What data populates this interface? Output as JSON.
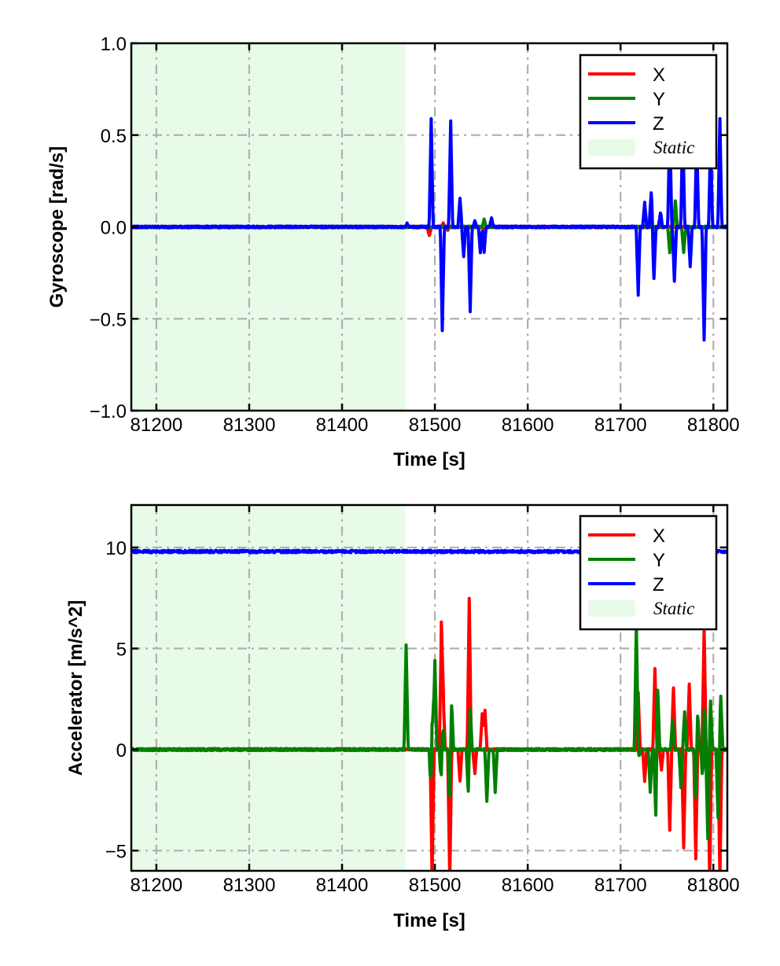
{
  "chart_data": [
    {
      "type": "line",
      "xlabel": "Time [s]",
      "ylabel": "Gyroscope [rad/s]",
      "xlim": [
        81173,
        81815
      ],
      "ylim": [
        -1.0,
        1.0
      ],
      "xticks": [
        81200,
        81300,
        81400,
        81500,
        81600,
        81700,
        81800
      ],
      "xtick_labels": [
        "81200",
        "81300",
        "81400",
        "81500",
        "81600",
        "81700",
        "81800"
      ],
      "yticks": [
        1.0,
        0.5,
        0.0,
        -0.5,
        -1.0
      ],
      "ytick_labels": [
        "1.0",
        "0.5",
        "0.0",
        "−0.5",
        "−1.0"
      ],
      "grid": true,
      "legend_position": "top-right",
      "static_region": {
        "label": "Static",
        "x_range": [
          81173,
          81468
        ],
        "color": "#e8fbe8"
      },
      "series": [
        {
          "name": "X",
          "color": "#ff0000",
          "baseline": 0.0,
          "noise": 0.004,
          "spikes": [
            [
              81494,
              -0.05
            ],
            [
              81509,
              0.02
            ],
            [
              81514,
              -0.02
            ],
            [
              81553,
              -0.02
            ]
          ]
        },
        {
          "name": "Y",
          "color": "#008000",
          "baseline": 0.0,
          "noise": 0.004,
          "spikes": [
            [
              81553,
              0.04
            ],
            [
              81753,
              -0.14
            ],
            [
              81759,
              0.14
            ],
            [
              81768,
              -0.14
            ]
          ]
        },
        {
          "name": "Z",
          "color": "#0000ff",
          "baseline": 0.0,
          "noise": 0.005,
          "spikes": [
            [
              81470,
              0.02
            ],
            [
              81496,
              0.59
            ],
            [
              81508,
              -0.56
            ],
            [
              81517,
              0.58
            ],
            [
              81527,
              0.16
            ],
            [
              81531,
              -0.16
            ],
            [
              81538,
              -0.46
            ],
            [
              81543,
              0.03
            ],
            [
              81549,
              -0.14
            ],
            [
              81553,
              -0.14
            ],
            [
              81561,
              0.05
            ],
            [
              81719,
              -0.37
            ],
            [
              81726,
              0.13
            ],
            [
              81733,
              0.19
            ],
            [
              81736,
              -0.28
            ],
            [
              81743,
              0.08
            ],
            [
              81753,
              0.55
            ],
            [
              81758,
              -0.3
            ],
            [
              81767,
              0.55
            ],
            [
              81775,
              -0.22
            ],
            [
              81782,
              0.5
            ],
            [
              81790,
              -0.62
            ],
            [
              81797,
              0.5
            ],
            [
              81807,
              0.59
            ]
          ]
        }
      ]
    },
    {
      "type": "line",
      "xlabel": "Time [s]",
      "ylabel": "Accelerator [m/s^2]",
      "xlim": [
        81173,
        81815
      ],
      "ylim": [
        -6.0,
        12.1
      ],
      "xticks": [
        81200,
        81300,
        81400,
        81500,
        81600,
        81700,
        81800
      ],
      "xtick_labels": [
        "81200",
        "81300",
        "81400",
        "81500",
        "81600",
        "81700",
        "81800"
      ],
      "yticks": [
        10,
        5,
        0,
        -5
      ],
      "ytick_labels": [
        "10",
        "5",
        "0",
        "−5"
      ],
      "grid": true,
      "legend_position": "top-right",
      "static_region": {
        "label": "Static",
        "x_range": [
          81173,
          81468
        ],
        "color": "#e8fbe8"
      },
      "series": [
        {
          "name": "X",
          "color": "#ff0000",
          "baseline": 0.0,
          "noise": 0.05,
          "spikes": [
            [
              81497,
              -6.5
            ],
            [
              81507,
              6.1
            ],
            [
              81509,
              2.6
            ],
            [
              81516,
              -6.5
            ],
            [
              81527,
              -1.6
            ],
            [
              81537,
              7.5
            ],
            [
              81543,
              -1.2
            ],
            [
              81551,
              1.8
            ],
            [
              81554,
              1.9
            ],
            [
              81719,
              2.8
            ],
            [
              81726,
              -1.6
            ],
            [
              81737,
              4.0
            ],
            [
              81744,
              -1.0
            ],
            [
              81753,
              -4.0
            ],
            [
              81757,
              3.1
            ],
            [
              81768,
              -4.9
            ],
            [
              81774,
              3.2
            ],
            [
              81781,
              -5.4
            ],
            [
              81790,
              6.0
            ],
            [
              81796,
              -6.5
            ],
            [
              81807,
              -6.5
            ]
          ]
        },
        {
          "name": "Y",
          "color": "#008000",
          "baseline": 0.0,
          "noise": 0.05,
          "spikes": [
            [
              81469,
              5.2
            ],
            [
              81496,
              -2.9
            ],
            [
              81497,
              2.9
            ],
            [
              81500,
              4.4
            ],
            [
              81507,
              -2.3
            ],
            [
              81508,
              2.0
            ],
            [
              81516,
              -2.5
            ],
            [
              81518,
              2.4
            ],
            [
              81536,
              -2.3
            ],
            [
              81538,
              2.2
            ],
            [
              81556,
              -2.6
            ],
            [
              81565,
              -2.1
            ],
            [
              81717,
              6.2
            ],
            [
              81720,
              -0.3
            ],
            [
              81732,
              -2.1
            ],
            [
              81738,
              -3.5
            ],
            [
              81740,
              3.3
            ],
            [
              81756,
              1.5
            ],
            [
              81765,
              -1.9
            ],
            [
              81769,
              1.9
            ],
            [
              81781,
              -2.5
            ],
            [
              81783,
              1.9
            ],
            [
              81790,
              3.5
            ],
            [
              81789,
              -2.8
            ],
            [
              81794,
              -4.4
            ],
            [
              81797,
              2.4
            ],
            [
              81805,
              -3.4
            ],
            [
              81808,
              2.6
            ]
          ]
        },
        {
          "name": "Z",
          "color": "#0000ff",
          "baseline": 9.8,
          "noise": 0.06,
          "spikes": []
        }
      ]
    }
  ]
}
